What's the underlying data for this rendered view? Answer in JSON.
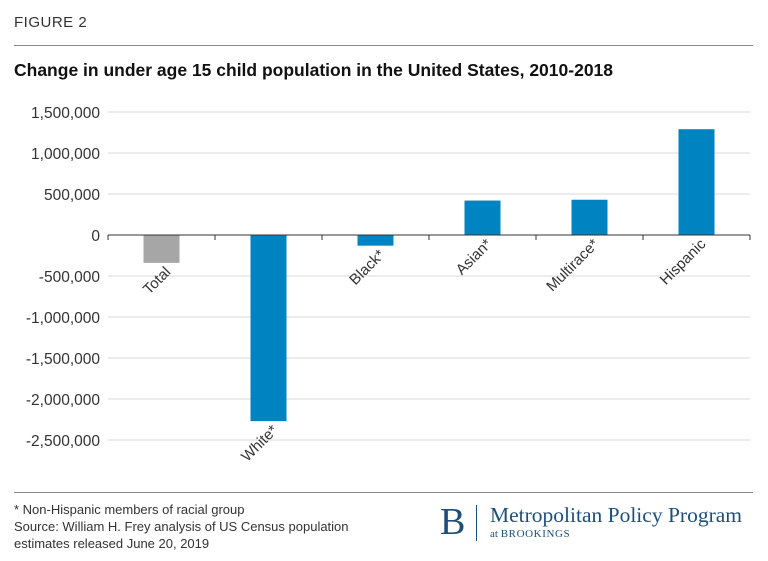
{
  "figure_label": "FIGURE 2",
  "chart_data": {
    "type": "bar",
    "title": "Change in under age 15 child population in the United States, 2010-2018",
    "categories": [
      "Total",
      "White*",
      "Black*",
      "Asian*",
      "Multirace*",
      "Hispanic"
    ],
    "values": [
      -340000,
      -2270000,
      -130000,
      420000,
      430000,
      1290000
    ],
    "bar_colors": [
      "#a6a6a6",
      "#0083c1",
      "#0083c1",
      "#0083c1",
      "#0083c1",
      "#0083c1"
    ],
    "ylim": [
      -2500000,
      1500000
    ],
    "yticks": [
      1500000,
      1000000,
      500000,
      0,
      -500000,
      -1000000,
      -1500000,
      -2000000,
      -2500000
    ],
    "ytick_labels": [
      "1,500,000",
      "1,000,000",
      "500,000",
      "0",
      "-500,000",
      "-1,000,000",
      "-1,500,000",
      "-2,000,000",
      "-2,500,000"
    ],
    "grid": true,
    "xlabel": "",
    "ylabel": ""
  },
  "footnote": {
    "line1": "* Non-Hispanic members of racial group",
    "line2": "Source: William H. Frey analysis of US Census population",
    "line3": "estimates released June 20, 2019"
  },
  "logo": {
    "mark": "B",
    "name": "Metropolitan Policy Program",
    "sub_prefix": "at",
    "sub_org": "BROOKINGS"
  },
  "colors": {
    "grid": "#d9d9d9",
    "axis": "#333333",
    "brand": "#1f4e79"
  }
}
